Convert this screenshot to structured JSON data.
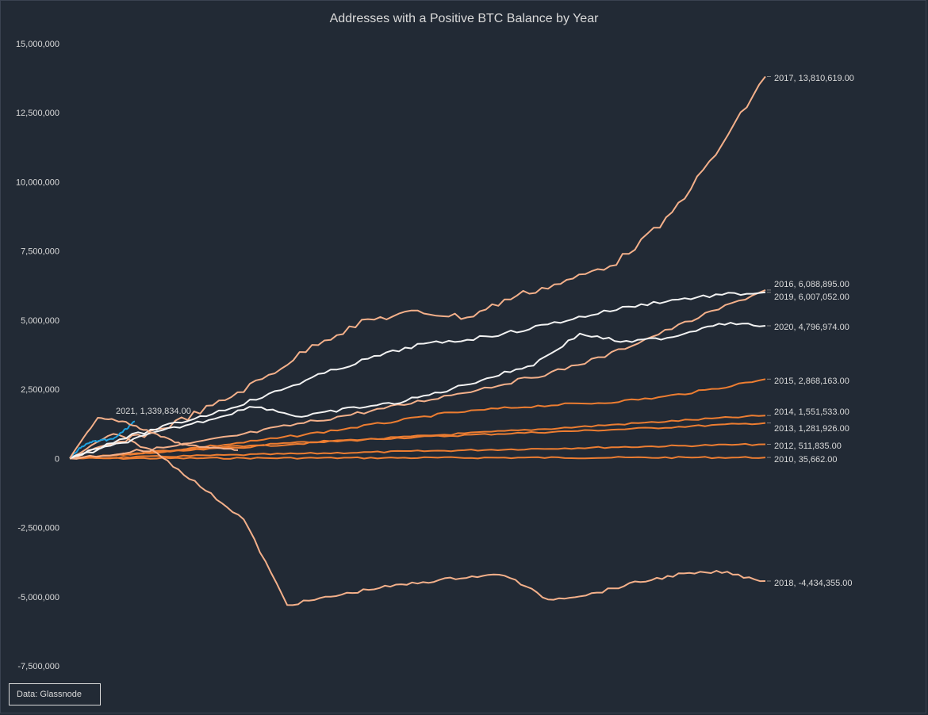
{
  "chart_data": {
    "type": "line",
    "title": "Addresses with a Positive BTC Balance by Year",
    "ylim": [
      -7500000,
      15000000
    ],
    "y_ticks": [
      15000000,
      12500000,
      10000000,
      7500000,
      5000000,
      2500000,
      0,
      -2500000,
      -5000000,
      -7500000
    ],
    "y_tick_labels": [
      "15,000,000",
      "12,500,000",
      "10,000,000",
      "7,500,000",
      "5,000,000",
      "2,500,000",
      "0",
      "-2,500,000",
      "-5,000,000",
      "-7,500,000"
    ],
    "x_axis": "days since start of year (unlabeled)",
    "grid": false,
    "legend": "none (end-of-line labels)",
    "colors": {
      "background": "#222a35",
      "text": "#d9d9d9",
      "orange": "#ed7d31",
      "light_orange": "#f4b08a",
      "white": "#f2f2f2",
      "blue": "#1fa2e0"
    },
    "series": [
      {
        "name": "2010",
        "label": "2010, 35,662.00",
        "color": "#ed7d31",
        "values": [
          0,
          3000,
          6000,
          10000,
          14000,
          17000,
          20000,
          23000,
          26000,
          28000,
          30000,
          32000,
          34000,
          35662
        ]
      },
      {
        "name": "2012",
        "label": "2012, 511,835.00",
        "color": "#ed7d31",
        "values": [
          0,
          40000,
          80000,
          120000,
          160000,
          200000,
          240000,
          280000,
          320000,
          360000,
          400000,
          440000,
          480000,
          511835
        ]
      },
      {
        "name": "2013",
        "label": "2013, 1,281,926.00",
        "color": "#ed7d31",
        "values": [
          0,
          150000,
          290000,
          420000,
          540000,
          640000,
          730000,
          810000,
          890000,
          960000,
          1030000,
          1110000,
          1200000,
          1281926
        ]
      },
      {
        "name": "2014",
        "label": "2014, 1,551,533.00",
        "color": "#ed7d31",
        "values": [
          0,
          130000,
          260000,
          380000,
          500000,
          620000,
          740000,
          860000,
          970000,
          1080000,
          1200000,
          1320000,
          1440000,
          1551533
        ]
      },
      {
        "name": "2015",
        "label": "2015, 2,868,163.00",
        "color": "#ed7d31",
        "values": [
          0,
          150000,
          320000,
          520000,
          760000,
          1030000,
          1320000,
          1620000,
          1800000,
          1930000,
          2020000,
          2200000,
          2500000,
          2868163
        ]
      },
      {
        "name": "2016",
        "label": "2016, 6,088,895.00",
        "color": "#f4b08a",
        "values": [
          0,
          200000,
          450000,
          780000,
          1150000,
          1500000,
          1850000,
          2250000,
          2650000,
          3100000,
          3700000,
          4500000,
          5300000,
          6088895
        ]
      },
      {
        "name": "2017",
        "label": "2017, 13,810,619.00",
        "color": "#f4b08a",
        "values": [
          0,
          550000,
          1200000,
          2000000,
          3000000,
          4200000,
          5000000,
          5300000,
          5100000,
          5900000,
          6400000,
          7100000,
          8600000,
          11000000,
          13810619
        ]
      },
      {
        "name": "2018",
        "label": "2018, -4,434,355.00",
        "color": "#f4b08a",
        "values": [
          0,
          900000,
          200000,
          -1000000,
          -2200000,
          -5300000,
          -5000000,
          -4700000,
          -4500000,
          -4300000,
          -4200000,
          -5100000,
          -4900000,
          -4500000,
          -4200000,
          -4100000,
          -4434355
        ]
      },
      {
        "name": "2019",
        "label": "2019, 6,007,052.00",
        "color": "#f2f2f2",
        "values": [
          0,
          700000,
          1200000,
          1700000,
          2300000,
          3000000,
          3600000,
          4100000,
          4300000,
          4600000,
          5000000,
          5400000,
          5700000,
          5900000,
          6007052
        ]
      },
      {
        "name": "2020",
        "label": "2020, 4,796,974.00",
        "color": "#f2f2f2",
        "values": [
          0,
          500000,
          1000000,
          1400000,
          1900000,
          1500000,
          1800000,
          2000000,
          2400000,
          2900000,
          3400000,
          4500000,
          4200000,
          4400000,
          4900000,
          4796974
        ]
      },
      {
        "name": "2021",
        "label": "2021, 1,339,834.00",
        "color": "#1fa2e0",
        "values": [
          0,
          400000,
          600000,
          650000,
          700000,
          1000000,
          1339834
        ]
      },
      {
        "name": "Unlabeled",
        "label": "",
        "color": "#f4b08a",
        "values": [
          0,
          1500000,
          1300000,
          900000,
          500000,
          400000,
          300000
        ]
      }
    ]
  },
  "source_box": "Data: Glassnode"
}
